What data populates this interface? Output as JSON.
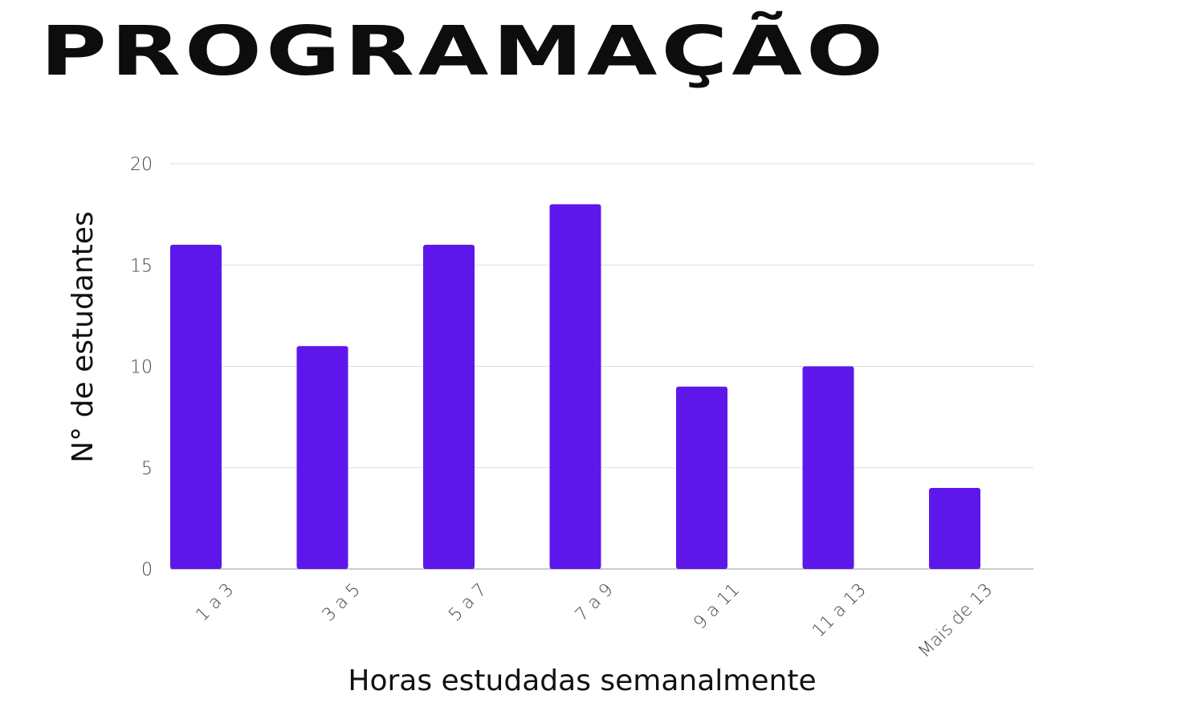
{
  "page": {
    "title": "PROGRAMAÇÃO"
  },
  "chart_data": {
    "type": "bar",
    "categories": [
      "1 a 3",
      "3 a 5",
      "5 a 7",
      "7 a 9",
      "9 a 11",
      "11 a 13",
      "Mais de 13"
    ],
    "values": [
      16,
      11,
      16,
      18,
      9,
      10,
      4
    ],
    "xlabel": "Horas estudadas semanalmente",
    "ylabel": "N° de estudantes",
    "ylim": [
      0,
      20
    ],
    "yticks": [
      "0",
      "5",
      "10",
      "15",
      "20"
    ],
    "grid": true,
    "legend": "none",
    "colors": {
      "bar": "#5e17eb",
      "grid": "#dddddd",
      "baseline": "#999999"
    }
  }
}
